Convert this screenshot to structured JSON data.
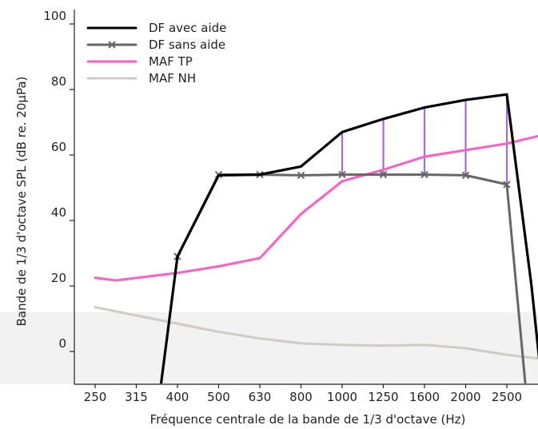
{
  "chart_data": {
    "type": "line",
    "xlabel": "Fréquence centrale de la bande de 1/3 d'octave (Hz)",
    "ylabel": "Bande de 1/3 d'octave SPL (dB re. 20µPa)",
    "x_ticks": [
      "250",
      "315",
      "400",
      "500",
      "630",
      "800",
      "1000",
      "1250",
      "1600",
      "2000",
      "2500"
    ],
    "y_ticks": [
      0,
      20,
      40,
      60,
      80,
      100
    ],
    "ylim": [
      -10,
      105
    ],
    "grid": false,
    "legend_position": "top-left",
    "series": [
      {
        "name": "DF avec aide",
        "color": "#000000",
        "marker": "none",
        "points": [
          [
            2.6,
            -10
          ],
          [
            3,
            29
          ],
          [
            4,
            53.8
          ],
          [
            5,
            54
          ],
          [
            6,
            56.5
          ],
          [
            7,
            67
          ],
          [
            8,
            71
          ],
          [
            9,
            74.5
          ],
          [
            10,
            76.8
          ],
          [
            11,
            78.5
          ],
          [
            11.6,
            20
          ],
          [
            11.85,
            -10
          ]
        ]
      },
      {
        "name": "DF sans aide",
        "color": "#666666",
        "marker": "x",
        "points": [
          [
            3,
            29
          ],
          [
            4,
            54
          ],
          [
            5,
            54
          ],
          [
            6,
            53.8
          ],
          [
            7,
            54
          ],
          [
            8,
            54
          ],
          [
            9,
            54
          ],
          [
            10,
            53.8
          ],
          [
            11,
            51
          ],
          [
            11.45,
            -10
          ]
        ]
      },
      {
        "name": "MAF TP",
        "color": "#ff5ec4",
        "marker": "none",
        "points": [
          [
            1,
            22.5
          ],
          [
            1.5,
            21.7
          ],
          [
            3,
            24
          ],
          [
            4,
            26
          ],
          [
            5,
            28.5
          ],
          [
            6,
            42
          ],
          [
            7,
            52
          ],
          [
            8,
            55.5
          ],
          [
            9,
            59.5
          ],
          [
            10,
            61.5
          ],
          [
            11,
            63.5
          ],
          [
            12,
            66.5
          ],
          [
            12.6,
            69.5
          ]
        ]
      },
      {
        "name": "MAF NH",
        "color": "#cfcbc6",
        "marker": "none",
        "points": [
          [
            1,
            13.5
          ],
          [
            2,
            11
          ],
          [
            3,
            8.5
          ],
          [
            4,
            6
          ],
          [
            5,
            4
          ],
          [
            6,
            2.5
          ],
          [
            7,
            2
          ],
          [
            8,
            1.8
          ],
          [
            9,
            2
          ],
          [
            10,
            1
          ],
          [
            11,
            -1
          ],
          [
            12,
            -2.5
          ],
          [
            12.6,
            -3
          ]
        ]
      }
    ],
    "difference_bars": {
      "color": "#a46be0",
      "x": [
        7,
        8,
        9,
        10,
        11
      ],
      "top": [
        67,
        71,
        74.5,
        76.8,
        78.5
      ],
      "bottom": [
        54,
        54,
        54,
        53.8,
        51
      ]
    },
    "shaded_region": {
      "ylim": [
        -10,
        12
      ],
      "color": "#f2f2f2"
    }
  }
}
